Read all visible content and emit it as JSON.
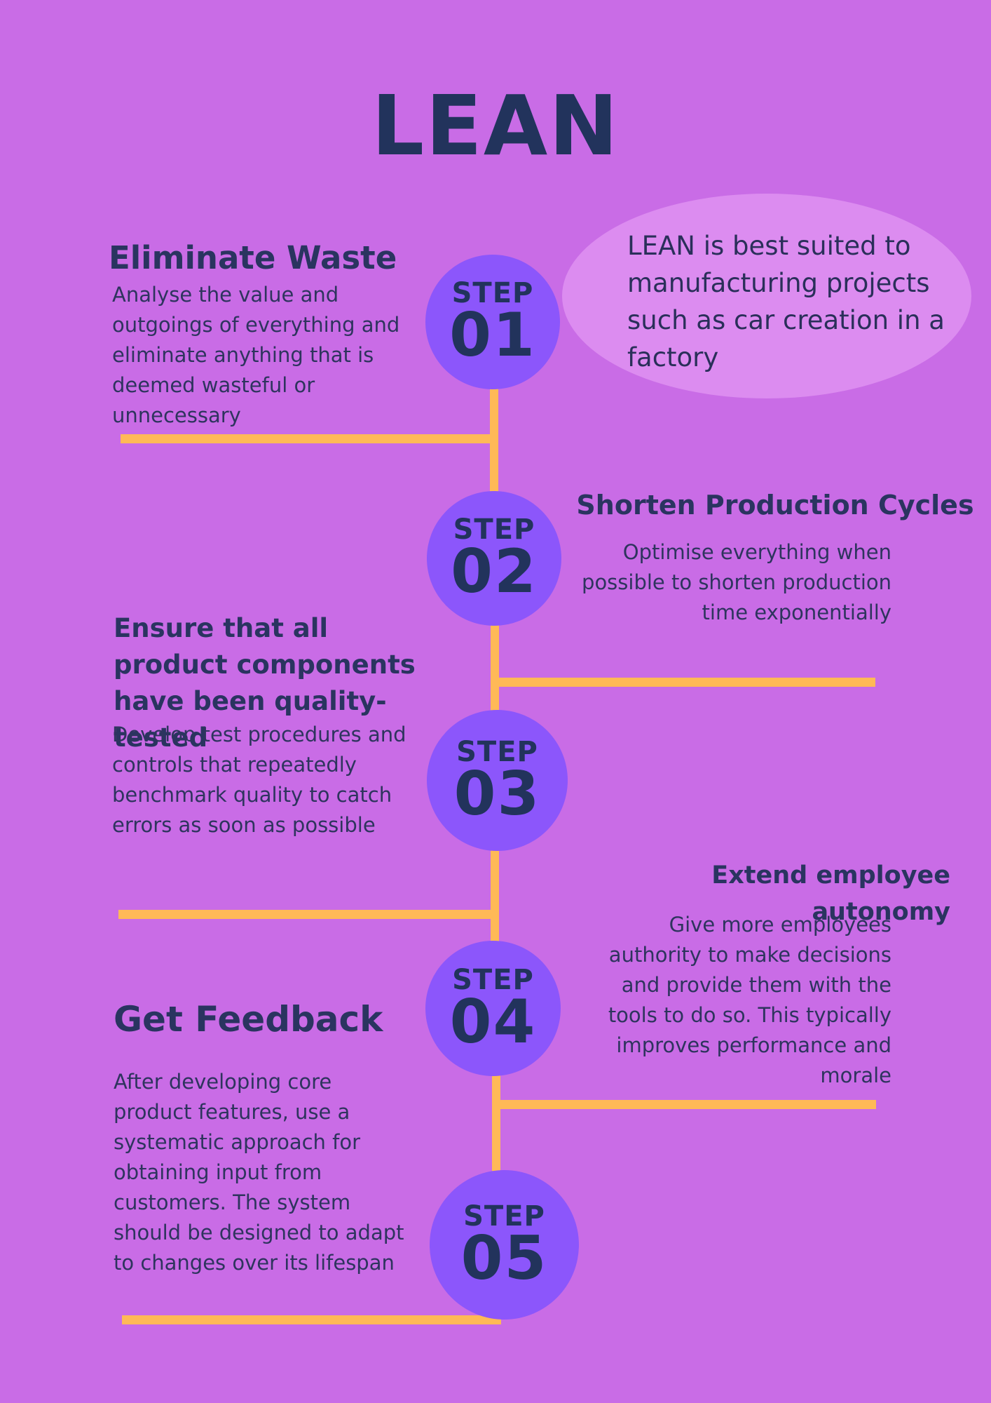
{
  "title": "LEAN",
  "note": "LEAN is best suited to manufacturing projects such as car creation in a factory",
  "step_label": "STEP",
  "steps": [
    {
      "number": "01",
      "heading": "Eliminate Waste",
      "body": "Analyse the value and outgoings of everything and eliminate anything that is deemed wasteful or unnecessary"
    },
    {
      "number": "02",
      "heading": "Shorten Production Cycles",
      "body": "Optimise everything when possible to shorten production time exponentially"
    },
    {
      "number": "03",
      "heading": "Ensure that all product components have been quality-tested",
      "body": "Develop test procedures and controls that repeatedly benchmark quality to catch errors as soon as possible"
    },
    {
      "number": "04",
      "heading": "Extend employee autonomy",
      "body": "Give more employees authority to make decisions and provide them with the tools to do so. This typically improves performance and morale"
    },
    {
      "number": "05",
      "heading": "Get Feedback",
      "body": "After developing core product features, use a systematic approach for obtaining input from customers. The system should be designed to adapt to changes over its lifespan"
    }
  ],
  "colors": {
    "background": "#c96ce6",
    "bubble": "#dc8cf0",
    "circle": "#8c56fb",
    "connector": "#ffb957",
    "text": "#22335c"
  }
}
